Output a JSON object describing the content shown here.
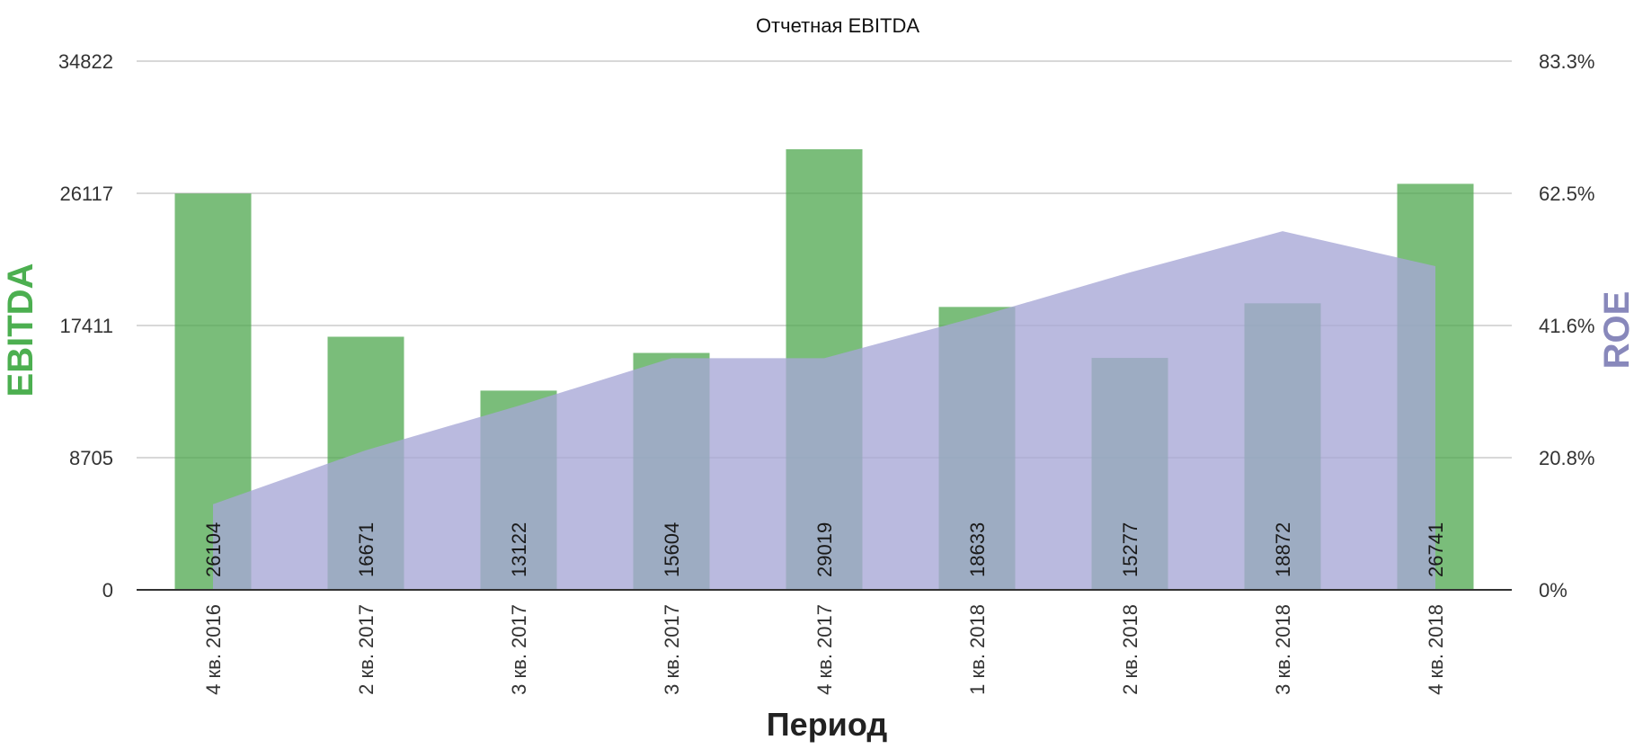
{
  "chart_data": {
    "type": "bar",
    "title": "Отчетная EBITDA",
    "xlabel": "Период",
    "ylabel": "EBITDA",
    "y2label": "ROE",
    "categories": [
      "4 кв. 2016",
      "2 кв. 2017",
      "3 кв. 2017",
      "3 кв. 2017",
      "4 кв. 2017",
      "1 кв. 2018",
      "2 кв. 2018",
      "3 кв. 2018",
      "4 кв. 2018"
    ],
    "series": [
      {
        "name": "EBITDA",
        "kind": "bar",
        "axis": "left",
        "values": [
          26104,
          16671,
          13122,
          15604,
          29019,
          18633,
          15277,
          18872,
          26741
        ],
        "data_labels": [
          "26104",
          "16671",
          "13122",
          "15604",
          "29019",
          "18633",
          "15277",
          "18872",
          "26741"
        ]
      },
      {
        "name": "ROE",
        "kind": "area",
        "axis": "right",
        "values": [
          13.5,
          22.0,
          29.0,
          36.5,
          36.5,
          43.0,
          50.0,
          56.5,
          51.0
        ]
      }
    ],
    "ylim": [
      0,
      34822
    ],
    "yticks": [
      "0",
      "8705",
      "17411",
      "26117",
      "34822"
    ],
    "y2lim": [
      0,
      83.3
    ],
    "y2ticks": [
      "0%",
      "20.8%",
      "41.6%",
      "62.5%",
      "83.3%"
    ],
    "grid": true,
    "colors": {
      "bar": "#4ca64c",
      "area": "#a6a6d6",
      "ylabel": "#4caf50",
      "y2label": "#8888bb",
      "grid": "#cccccc",
      "axis": "#333333"
    }
  }
}
